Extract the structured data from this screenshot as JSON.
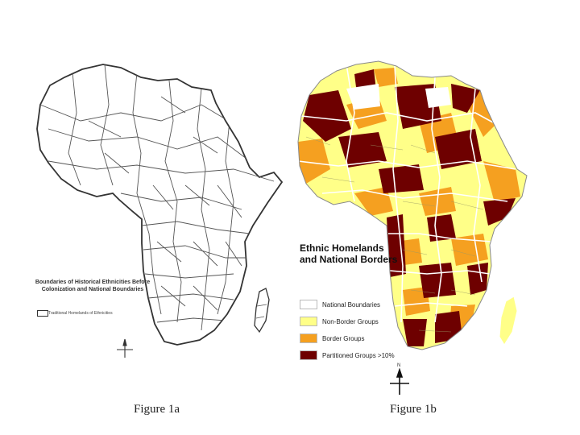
{
  "figure_a": {
    "legend_title": "Boundaries of Historical Ethnicities Before Colonization and National Boundaries",
    "legend_item": "Traditional Homelands of Ethnicities",
    "caption": "Figure 1a"
  },
  "figure_b": {
    "legend_title_line1": "Ethnic Homelands",
    "legend_title_line2": "and National Borders",
    "legend_items": [
      {
        "label": "National Boundaries",
        "color": "#ffffff"
      },
      {
        "label": "Non-Border Groups",
        "color": "#ffff88"
      },
      {
        "label": "Border Groups",
        "color": "#f5a020"
      },
      {
        "label": "Partitioned Groups >10%",
        "color": "#6e0000"
      }
    ],
    "caption": "Figure 1b",
    "north_label": "N"
  },
  "colors": {
    "outline_a": "#444444",
    "non_border": "#ffff88",
    "border_groups": "#f5a020",
    "partitioned": "#6e0000",
    "national_boundary": "#ffffff"
  }
}
